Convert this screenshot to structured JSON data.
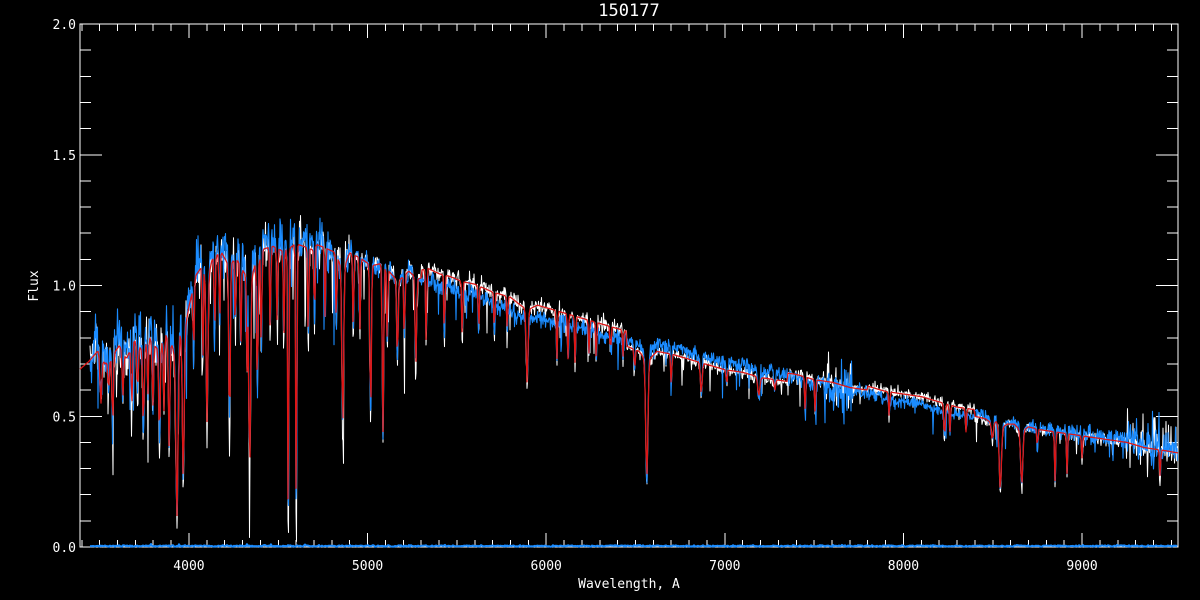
{
  "chart_data": {
    "type": "line",
    "title": "150177",
    "xlabel": "Wavelength, A",
    "ylabel": "Flux",
    "xlim": [
      3390,
      9537
    ],
    "ylim": [
      0,
      2
    ],
    "grid": false,
    "legend": "none",
    "background_color": "#000000",
    "axis_color": "#ffffff",
    "x_ticks": [
      {
        "v": 4000,
        "label": "4000"
      },
      {
        "v": 5000,
        "label": "5000"
      },
      {
        "v": 6000,
        "label": "6000"
      },
      {
        "v": 7000,
        "label": "7000"
      },
      {
        "v": 8000,
        "label": "8000"
      },
      {
        "v": 9000,
        "label": "9000"
      }
    ],
    "y_ticks": [
      {
        "v": 0.0,
        "label": "0.0"
      },
      {
        "v": 0.5,
        "label": "0.5"
      },
      {
        "v": 1.0,
        "label": "1.0"
      },
      {
        "v": 1.5,
        "label": "1.5"
      },
      {
        "v": 2.0,
        "label": "2.0"
      }
    ],
    "x_minor_step": 100,
    "y_minor_step": 0.1,
    "seed": 150177,
    "series": {
      "model": {
        "name": "template-fit",
        "color": "#dd1616",
        "points": [
          [
            3390,
            0.7
          ],
          [
            3440,
            0.73
          ],
          [
            3490,
            0.77
          ],
          [
            3530,
            0.72
          ],
          [
            3570,
            0.75
          ],
          [
            3610,
            0.79
          ],
          [
            3650,
            0.74
          ],
          [
            3695,
            0.81
          ],
          [
            3740,
            0.77
          ],
          [
            3780,
            0.82
          ],
          [
            3830,
            0.77
          ],
          [
            3870,
            0.83
          ],
          [
            3905,
            0.79
          ],
          [
            3933,
            0.73
          ],
          [
            3950,
            0.84
          ],
          [
            3970,
            0.82
          ],
          [
            4000,
            0.94
          ],
          [
            4040,
            1.06
          ],
          [
            4080,
            1.1
          ],
          [
            4101,
            1.03
          ],
          [
            4130,
            1.12
          ],
          [
            4180,
            1.15
          ],
          [
            4227,
            1.09
          ],
          [
            4260,
            1.13
          ],
          [
            4300,
            1.08
          ],
          [
            4340,
            1.03
          ],
          [
            4380,
            1.12
          ],
          [
            4420,
            1.16
          ],
          [
            4470,
            1.17
          ],
          [
            4530,
            1.15
          ],
          [
            4600,
            1.18
          ],
          [
            4680,
            1.16
          ],
          [
            4760,
            1.14
          ],
          [
            4820,
            1.12
          ],
          [
            4861,
            1.05
          ],
          [
            4900,
            1.12
          ],
          [
            4960,
            1.1
          ],
          [
            5020,
            1.07
          ],
          [
            5080,
            1.08
          ],
          [
            5170,
            1.01
          ],
          [
            5230,
            1.05
          ],
          [
            5280,
            1.02
          ],
          [
            5340,
            1.03
          ],
          [
            5400,
            1.01
          ],
          [
            5460,
            1.0
          ],
          [
            5530,
            0.98
          ],
          [
            5600,
            0.97
          ],
          [
            5700,
            0.94
          ],
          [
            5800,
            0.92
          ],
          [
            5893,
            0.87
          ],
          [
            5950,
            0.89
          ],
          [
            6050,
            0.87
          ],
          [
            6150,
            0.85
          ],
          [
            6250,
            0.83
          ],
          [
            6350,
            0.81
          ],
          [
            6450,
            0.79
          ],
          [
            6520,
            0.77
          ],
          [
            6563,
            0.73
          ],
          [
            6620,
            0.77
          ],
          [
            6700,
            0.76
          ],
          [
            6800,
            0.74
          ],
          [
            6900,
            0.72
          ],
          [
            7000,
            0.7
          ],
          [
            7100,
            0.69
          ],
          [
            7200,
            0.67
          ],
          [
            7300,
            0.66
          ],
          [
            7400,
            0.65
          ],
          [
            7500,
            0.63
          ],
          [
            7600,
            0.62
          ],
          [
            7700,
            0.6
          ],
          [
            7800,
            0.59
          ],
          [
            7900,
            0.57
          ],
          [
            8000,
            0.56
          ],
          [
            8100,
            0.55
          ],
          [
            8200,
            0.53
          ],
          [
            8300,
            0.51
          ],
          [
            8400,
            0.5
          ],
          [
            8460,
            0.49
          ],
          [
            8498,
            0.47
          ],
          [
            8520,
            0.48
          ],
          [
            8542,
            0.45
          ],
          [
            8580,
            0.47
          ],
          [
            8620,
            0.47
          ],
          [
            8662,
            0.44
          ],
          [
            8700,
            0.46
          ],
          [
            8750,
            0.45
          ],
          [
            8850,
            0.44
          ],
          [
            8950,
            0.43
          ],
          [
            9050,
            0.42
          ],
          [
            9150,
            0.41
          ],
          [
            9250,
            0.4
          ],
          [
            9350,
            0.38
          ],
          [
            9450,
            0.37
          ],
          [
            9537,
            0.36
          ]
        ]
      },
      "observed_primary": {
        "name": "observed-spectrum",
        "color": "#1b8cff",
        "start_wavelength": 3446
      },
      "observed_secondary": {
        "name": "comparison-spectrum",
        "color": "#ffffff",
        "start_wavelength": 3446,
        "line_depth_factor": 1.08
      },
      "error": {
        "name": "error-spectrum",
        "color": "#1b8cff",
        "flux": 0.004
      }
    },
    "absorption_lines": [
      [
        3507,
        0.55,
        5
      ],
      [
        3550,
        0.6,
        4
      ],
      [
        3573,
        0.48,
        4
      ],
      [
        3630,
        0.58,
        4
      ],
      [
        3680,
        0.55,
        4
      ],
      [
        3712,
        0.6,
        4
      ],
      [
        3745,
        0.46,
        4
      ],
      [
        3770,
        0.58,
        3
      ],
      [
        3798,
        0.54,
        4
      ],
      [
        3835,
        0.42,
        4
      ],
      [
        3860,
        0.52,
        3
      ],
      [
        3889,
        0.38,
        4
      ],
      [
        3933,
        0.12,
        6
      ],
      [
        3968,
        0.26,
        5
      ],
      [
        4026,
        0.72,
        3
      ],
      [
        4077,
        0.68,
        3
      ],
      [
        4101,
        0.48,
        5
      ],
      [
        4144,
        0.82,
        3
      ],
      [
        4172,
        0.85,
        3
      ],
      [
        4227,
        0.44,
        4
      ],
      [
        4260,
        0.82,
        3
      ],
      [
        4290,
        0.76,
        3
      ],
      [
        4325,
        0.68,
        3
      ],
      [
        4340,
        0.3,
        5
      ],
      [
        4383,
        0.62,
        4
      ],
      [
        4405,
        0.75,
        3
      ],
      [
        4455,
        0.82,
        3
      ],
      [
        4494,
        0.85,
        3
      ],
      [
        4531,
        0.8,
        3
      ],
      [
        4556,
        0.05,
        3
      ],
      [
        4601,
        0.05,
        3
      ],
      [
        4668,
        0.8,
        3
      ],
      [
        4703,
        0.85,
        3
      ],
      [
        4762,
        0.88,
        3
      ],
      [
        4825,
        0.85,
        3
      ],
      [
        4861,
        0.47,
        5
      ],
      [
        4920,
        0.82,
        3
      ],
      [
        4957,
        0.83,
        3
      ],
      [
        5017,
        0.5,
        4
      ],
      [
        5086,
        0.44,
        4
      ],
      [
        5110,
        0.78,
        3
      ],
      [
        5167,
        0.72,
        4
      ],
      [
        5206,
        0.78,
        3
      ],
      [
        5270,
        0.7,
        4
      ],
      [
        5328,
        0.78,
        3
      ],
      [
        5430,
        0.8,
        3
      ],
      [
        5530,
        0.8,
        3
      ],
      [
        5622,
        0.83,
        3
      ],
      [
        5710,
        0.82,
        3
      ],
      [
        5782,
        0.83,
        3
      ],
      [
        5893,
        0.63,
        5
      ],
      [
        6060,
        0.72,
        3
      ],
      [
        6122,
        0.72,
        3
      ],
      [
        6162,
        0.7,
        3
      ],
      [
        6240,
        0.74,
        3
      ],
      [
        6280,
        0.72,
        3
      ],
      [
        6360,
        0.74,
        3
      ],
      [
        6430,
        0.73,
        3
      ],
      [
        6495,
        0.68,
        3
      ],
      [
        6563,
        0.27,
        6
      ],
      [
        6700,
        0.62,
        3
      ],
      [
        6868,
        0.59,
        5
      ],
      [
        7010,
        0.62,
        3
      ],
      [
        7190,
        0.58,
        6
      ],
      [
        7280,
        0.6,
        4
      ],
      [
        7450,
        0.52,
        3
      ],
      [
        7506,
        0.51,
        3
      ],
      [
        7920,
        0.5,
        3
      ],
      [
        8230,
        0.42,
        4
      ],
      [
        8260,
        0.44,
        3
      ],
      [
        8350,
        0.44,
        3
      ],
      [
        8498,
        0.41,
        5
      ],
      [
        8542,
        0.22,
        6
      ],
      [
        8662,
        0.24,
        6
      ],
      [
        8750,
        0.38,
        3
      ],
      [
        8849,
        0.25,
        3
      ],
      [
        8916,
        0.28,
        3
      ],
      [
        9000,
        0.34,
        3
      ],
      [
        9437,
        0.27,
        3
      ]
    ],
    "noise_segments": [
      [
        3390,
        4000,
        0.05,
        0.045,
        0.05,
        0.3,
        0.0,
        0.0
      ],
      [
        4000,
        4900,
        0.045,
        0.04,
        0.06,
        0.3,
        0.0,
        0.0
      ],
      [
        4900,
        5300,
        0.022,
        0.02,
        0.04,
        0.18,
        0.0,
        0.0
      ],
      [
        5300,
        6450,
        0.018,
        0.016,
        0.04,
        0.15,
        0.0,
        0.0
      ],
      [
        6450,
        7550,
        0.015,
        0.012,
        0.03,
        0.12,
        0.0,
        0.0
      ],
      [
        7550,
        7720,
        0.05,
        0.014,
        0.2,
        0.12,
        0.2,
        0.1
      ],
      [
        7720,
        8900,
        0.013,
        0.011,
        0.03,
        0.1,
        0.0,
        0.0
      ],
      [
        8900,
        9250,
        0.018,
        0.014,
        0.04,
        0.1,
        0.0,
        0.0
      ],
      [
        9250,
        9600,
        0.035,
        0.025,
        0.08,
        0.1,
        0.15,
        0.12
      ]
    ],
    "offset_segments": [
      [
        3390,
        4700,
        0.02,
        -0.02
      ],
      [
        4700,
        5300,
        0.005,
        0.005
      ],
      [
        5300,
        6450,
        -0.005,
        0.035
      ],
      [
        6450,
        7350,
        0.005,
        -0.022
      ],
      [
        7350,
        7800,
        0.0,
        0.01
      ],
      [
        7800,
        8400,
        -0.005,
        0.025
      ],
      [
        8400,
        9600,
        0.008,
        0.0
      ]
    ]
  }
}
